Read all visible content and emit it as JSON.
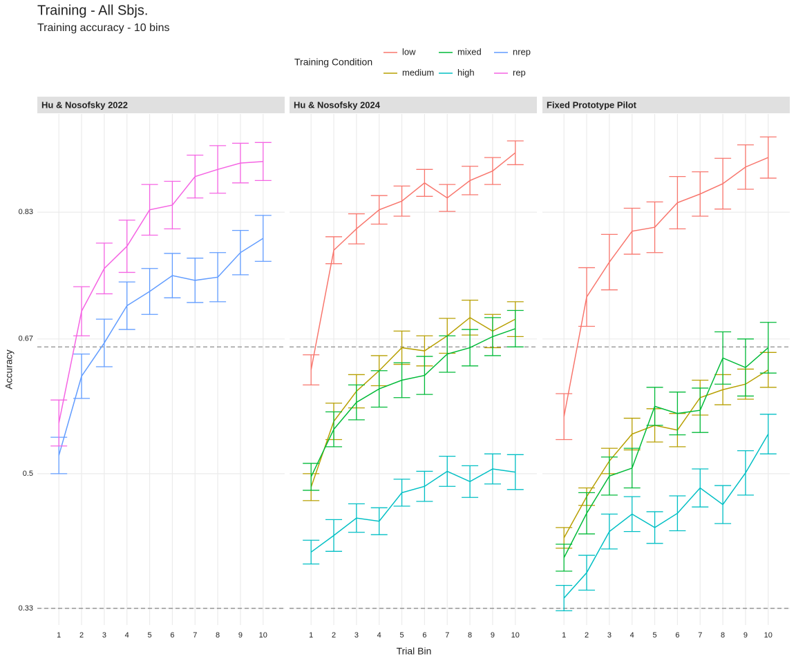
{
  "chart_data": {
    "type": "line",
    "title": "Training  - All Sbjs.",
    "subtitle": "Training accuracy - 10 bins",
    "xlabel": "Trial Bin",
    "ylabel": "Accuracy",
    "legend": {
      "title": "Training Condition",
      "items": [
        {
          "name": "low",
          "color": "#F8766D"
        },
        {
          "name": "medium",
          "color": "#B79F00"
        },
        {
          "name": "mixed",
          "color": "#00BA38"
        },
        {
          "name": "high",
          "color": "#00BFC4"
        },
        {
          "name": "nrep",
          "color": "#619CFF"
        },
        {
          "name": "rep",
          "color": "#F564E3"
        }
      ]
    },
    "x": [
      1,
      2,
      3,
      4,
      5,
      6,
      7,
      8,
      9,
      10
    ],
    "xlim": [
      0.05,
      10.95
    ],
    "xticks": [
      1,
      2,
      3,
      4,
      5,
      6,
      7,
      8,
      9,
      10
    ],
    "ylim": [
      0.309,
      0.954
    ],
    "yticks": [
      0.33,
      0.5,
      0.67,
      0.83
    ],
    "hlines": [
      0.33,
      0.66
    ],
    "grid": true,
    "panels": [
      {
        "title": "Hu & Nosofsky 2022",
        "series": [
          {
            "name": "nrep",
            "color": "#619CFF",
            "values": [
              0.523,
              0.623,
              0.665,
              0.712,
              0.73,
              0.75,
              0.744,
              0.748,
              0.779,
              0.797
            ],
            "errors": [
              0.023,
              0.028,
              0.03,
              0.03,
              0.029,
              0.028,
              0.028,
              0.031,
              0.028,
              0.029
            ]
          },
          {
            "name": "rep",
            "color": "#F564E3",
            "values": [
              0.564,
              0.705,
              0.759,
              0.787,
              0.833,
              0.839,
              0.875,
              0.884,
              0.892,
              0.894
            ],
            "errors": [
              0.029,
              0.031,
              0.032,
              0.033,
              0.032,
              0.03,
              0.027,
              0.03,
              0.025,
              0.024
            ]
          }
        ]
      },
      {
        "title": "Hu & Nosofsky 2024",
        "series": [
          {
            "name": "low",
            "color": "#F8766D",
            "values": [
              0.631,
              0.782,
              0.809,
              0.833,
              0.844,
              0.867,
              0.848,
              0.87,
              0.882,
              0.905
            ],
            "errors": [
              0.019,
              0.017,
              0.019,
              0.018,
              0.019,
              0.017,
              0.017,
              0.018,
              0.017,
              0.015
            ]
          },
          {
            "name": "medium",
            "color": "#B79F00",
            "values": [
              0.483,
              0.566,
              0.604,
              0.63,
              0.659,
              0.655,
              0.674,
              0.697,
              0.68,
              0.695
            ],
            "errors": [
              0.017,
              0.023,
              0.021,
              0.019,
              0.021,
              0.019,
              0.022,
              0.022,
              0.021,
              0.022
            ]
          },
          {
            "name": "mixed",
            "color": "#00BA38",
            "values": [
              0.496,
              0.556,
              0.59,
              0.607,
              0.618,
              0.624,
              0.651,
              0.659,
              0.673,
              0.683
            ],
            "errors": [
              0.017,
              0.022,
              0.022,
              0.023,
              0.022,
              0.024,
              0.023,
              0.023,
              0.024,
              0.023
            ]
          },
          {
            "name": "high",
            "color": "#00BFC4",
            "values": [
              0.401,
              0.422,
              0.444,
              0.44,
              0.476,
              0.484,
              0.503,
              0.49,
              0.506,
              0.502
            ],
            "errors": [
              0.015,
              0.02,
              0.018,
              0.017,
              0.017,
              0.019,
              0.019,
              0.02,
              0.019,
              0.022
            ]
          }
        ]
      },
      {
        "title": "Fixed Prototype Pilot",
        "series": [
          {
            "name": "low",
            "color": "#F8766D",
            "values": [
              0.572,
              0.723,
              0.767,
              0.806,
              0.811,
              0.842,
              0.853,
              0.866,
              0.887,
              0.899
            ],
            "errors": [
              0.029,
              0.037,
              0.035,
              0.029,
              0.032,
              0.033,
              0.028,
              0.032,
              0.028,
              0.026
            ]
          },
          {
            "name": "medium",
            "color": "#B79F00",
            "values": [
              0.419,
              0.471,
              0.516,
              0.55,
              0.561,
              0.555,
              0.596,
              0.606,
              0.613,
              0.631
            ],
            "errors": [
              0.013,
              0.011,
              0.016,
              0.02,
              0.021,
              0.021,
              0.022,
              0.019,
              0.019,
              0.022
            ]
          },
          {
            "name": "mixed",
            "color": "#00BA38",
            "values": [
              0.394,
              0.45,
              0.497,
              0.507,
              0.585,
              0.576,
              0.58,
              0.646,
              0.634,
              0.659
            ],
            "errors": [
              0.017,
              0.026,
              0.024,
              0.025,
              0.024,
              0.027,
              0.028,
              0.033,
              0.036,
              0.032
            ]
          },
          {
            "name": "high",
            "color": "#00BFC4",
            "values": [
              0.343,
              0.375,
              0.427,
              0.449,
              0.432,
              0.45,
              0.482,
              0.461,
              0.501,
              0.55
            ],
            "errors": [
              0.016,
              0.022,
              0.022,
              0.022,
              0.02,
              0.022,
              0.024,
              0.024,
              0.028,
              0.025
            ]
          }
        ]
      }
    ]
  }
}
